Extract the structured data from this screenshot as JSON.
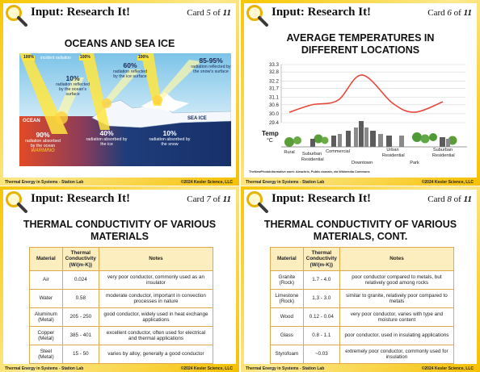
{
  "cards": [
    {
      "header": "Input: Research It!",
      "card_word": "Card",
      "number": "5",
      "of": "of",
      "total": "11",
      "title": "OCEANS AND SEA ICE",
      "figure": {
        "incident_label": "incident radiation",
        "incident_pcts": [
          "100%",
          "100%",
          "100%"
        ],
        "reflected": [
          {
            "pct": "10%",
            "text": "radiation reflected by the ocean's surface"
          },
          {
            "pct": "60%",
            "text": "radiation reflected by the ice surface"
          },
          {
            "pct": "85-95%",
            "text": "radiation reflected by the snow's surface"
          }
        ],
        "ocean_label": "OCEAN",
        "ice_label": "SEA ICE",
        "absorbed": [
          {
            "pct": "90%",
            "text": "radiation absorbed by the ocean",
            "note": "WARMING"
          },
          {
            "pct": "40%",
            "text": "radiation absorbed by the ice"
          },
          {
            "pct": "10%",
            "text": "radiation absorbed by the snow"
          }
        ]
      },
      "footer_left": "Thermal Energy in Systems - Station Lab",
      "footer_right": "©2024 Kesler Science, LLC"
    },
    {
      "header": "Input: Research It!",
      "card_word": "Card",
      "number": "6",
      "of": "of",
      "total": "11",
      "title": "AVERAGE TEMPERATURES IN DIFFERENT LOCATIONS",
      "chart": {
        "type": "line",
        "y_label": "Temp",
        "y_unit": "°C",
        "categories": [
          "Rural",
          "Suburban Residential",
          "Commercial",
          "Downtown",
          "Urban Residential",
          "Park",
          "Suburban Residential"
        ],
        "values": [
          30.1,
          30.6,
          30.9,
          32.6,
          30.7,
          30.1,
          30.8
        ],
        "color": "#e8473a",
        "ylim": [
          29.4,
          33.3
        ],
        "yticks": [
          29.4,
          {
            "value": 30.0,
            "label": "30.0"
          },
          30.6,
          31.1,
          31.7,
          32.2,
          32.8,
          33.3
        ],
        "grid": true
      },
      "credit": "TheNewPhotoInformative work: Aleazhrix, Public domain, via Wikimedia Commons",
      "footer_left": "Thermal Energy in Systems - Station Lab",
      "footer_right": "©2024 Kesler Science, LLC"
    },
    {
      "header": "Input: Research It!",
      "card_word": "Card",
      "number": "7",
      "of": "of",
      "total": "11",
      "title": "THERMAL CONDUCTIVITY OF VARIOUS MATERIALS",
      "table": {
        "columns": [
          "Material",
          "Thermal Conductivity (W/(m·K))",
          "Notes"
        ],
        "rows": [
          [
            "Air",
            "0.024",
            "very poor conductor, commonly used as an insulator"
          ],
          [
            "Water",
            "0.58",
            "moderate conductor, important in convection processes in nature"
          ],
          [
            "Aluminum (Metal)",
            "205 - 250",
            "good conductor, widely used in heat exchange applications"
          ],
          [
            "Copper (Metal)",
            "385 - 401",
            "excellent conductor, often used for electrical and thermal applications"
          ],
          [
            "Steel (Metal)",
            "15 - 50",
            "varies by alloy; generally a good conductor"
          ]
        ]
      },
      "footer_left": "Thermal Energy in Systems - Station Lab",
      "footer_right": "©2024 Kesler Science, LLC"
    },
    {
      "header": "Input: Research It!",
      "card_word": "Card",
      "number": "8",
      "of": "of",
      "total": "11",
      "title": "THERMAL CONDUCTIVITY OF VARIOUS MATERIALS, CONT.",
      "table": {
        "columns": [
          "Material",
          "Thermal Conductivity (W/(m·K))",
          "Notes"
        ],
        "rows": [
          [
            "Granite (Rock)",
            "1.7 - 4.0",
            "poor conductor compared to metals, but relatively good among rocks"
          ],
          [
            "Limestone (Rock)",
            "1.3 - 3.0",
            "similar to granite, relatively poor compared to metals"
          ],
          [
            "Wood",
            "0.12 - 0.04",
            "very poor conductor, varies with type and moisture content"
          ],
          [
            "Glass",
            "0.8 - 1.1",
            "poor conductor, used in insulating applications"
          ],
          [
            "Styrofoam",
            "~0.03",
            "extremely poor conductor, commonly used for insulation"
          ]
        ]
      },
      "footer_left": "Thermal Energy in Systems - Station Lab",
      "footer_right": "©2024 Kesler Science, LLC"
    }
  ]
}
